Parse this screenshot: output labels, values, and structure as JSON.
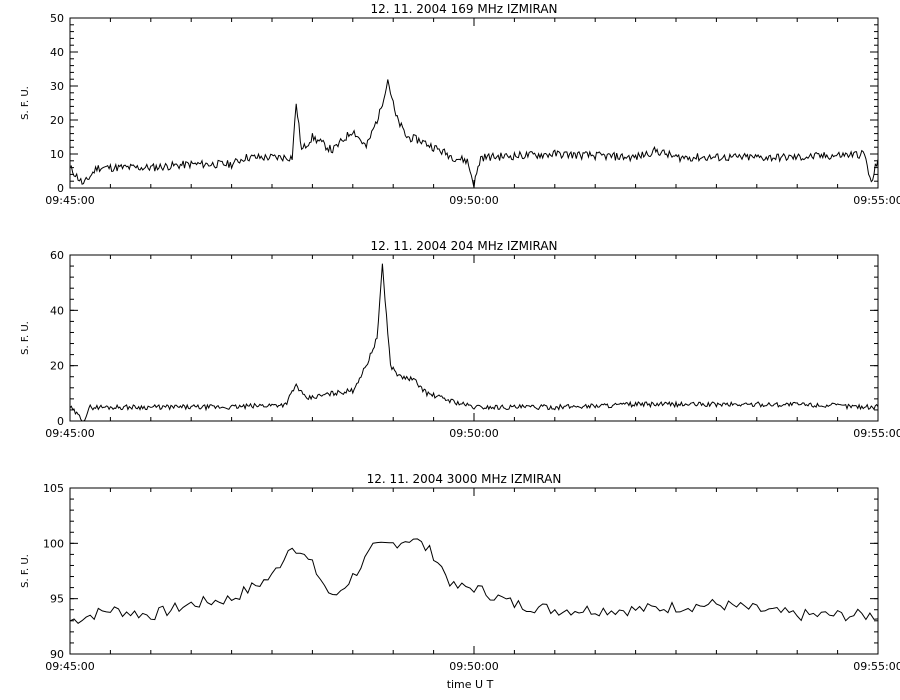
{
  "figure": {
    "xlabel": "time  U T"
  },
  "chart_data": [
    {
      "type": "line",
      "title": "12.  11.  2004    169 MHz    IZMIRAN",
      "ylabel": "S. F. U.",
      "xlim": [
        "09:45:00",
        "09:55:00"
      ],
      "ylim": [
        0,
        50
      ],
      "yticks": [
        0,
        10,
        20,
        30,
        40,
        50
      ],
      "xticks": [
        "09:45:00",
        "09:50:00",
        "09:55:00"
      ],
      "grid": false,
      "anchors": [
        [
          "09:45:00",
          6
        ],
        [
          "09:45:10",
          1
        ],
        [
          "09:45:20",
          6
        ],
        [
          "09:46:00",
          6
        ],
        [
          "09:46:30",
          7
        ],
        [
          "09:47:00",
          7
        ],
        [
          "09:47:10",
          9
        ],
        [
          "09:47:30",
          9
        ],
        [
          "09:47:45",
          9
        ],
        [
          "09:47:48",
          25
        ],
        [
          "09:47:52",
          11
        ],
        [
          "09:48:00",
          15
        ],
        [
          "09:48:15",
          11
        ],
        [
          "09:48:30",
          17
        ],
        [
          "09:48:40",
          12
        ],
        [
          "09:48:50",
          22
        ],
        [
          "09:48:56",
          32
        ],
        [
          "09:49:02",
          21
        ],
        [
          "09:49:10",
          15
        ],
        [
          "09:49:20",
          14
        ],
        [
          "09:49:30",
          12
        ],
        [
          "09:49:45",
          9
        ],
        [
          "09:49:55",
          8
        ],
        [
          "09:50:00",
          1
        ],
        [
          "09:50:05",
          9
        ],
        [
          "09:51:00",
          10
        ],
        [
          "09:52:00",
          9
        ],
        [
          "09:52:15",
          11
        ],
        [
          "09:52:30",
          9
        ],
        [
          "09:53:00",
          9
        ],
        [
          "09:54:00",
          9
        ],
        [
          "09:54:50",
          10
        ],
        [
          "09:54:55",
          1
        ],
        [
          "09:55:00",
          9
        ]
      ],
      "noise": 1.2,
      "seed": 11
    },
    {
      "type": "line",
      "title": "12.  11.  2004    204 MHz    IZMIRAN",
      "ylabel": "S. F. U.",
      "xlim": [
        "09:45:00",
        "09:55:00"
      ],
      "ylim": [
        0,
        60
      ],
      "yticks": [
        0,
        20,
        40,
        60
      ],
      "xticks": [
        "09:45:00",
        "09:50:00",
        "09:55:00"
      ],
      "grid": false,
      "anchors": [
        [
          "09:45:00",
          5
        ],
        [
          "09:45:10",
          0
        ],
        [
          "09:45:15",
          5
        ],
        [
          "09:46:00",
          5
        ],
        [
          "09:47:00",
          5
        ],
        [
          "09:47:40",
          6
        ],
        [
          "09:47:48",
          13
        ],
        [
          "09:47:55",
          8
        ],
        [
          "09:48:15",
          10
        ],
        [
          "09:48:30",
          11
        ],
        [
          "09:48:40",
          20
        ],
        [
          "09:48:48",
          30
        ],
        [
          "09:48:52",
          56
        ],
        [
          "09:48:58",
          20
        ],
        [
          "09:49:05",
          16
        ],
        [
          "09:49:15",
          15
        ],
        [
          "09:49:25",
          10
        ],
        [
          "09:49:45",
          7
        ],
        [
          "09:50:00",
          5
        ],
        [
          "09:51:00",
          5
        ],
        [
          "09:52:00",
          6
        ],
        [
          "09:53:00",
          6
        ],
        [
          "09:54:00",
          6
        ],
        [
          "09:55:00",
          5
        ]
      ],
      "noise": 0.9,
      "seed": 29
    },
    {
      "type": "line",
      "title": "12.  11.  2004    3000 MHz    IZMIRAN",
      "ylabel": "S. F. U.",
      "xlim": [
        "09:45:00",
        "09:55:00"
      ],
      "ylim": [
        90,
        105
      ],
      "yticks": [
        90,
        95,
        100,
        105
      ],
      "xticks": [
        "09:45:00",
        "09:50:00",
        "09:55:00"
      ],
      "grid": false,
      "anchors": [
        [
          "09:45:00",
          93
        ],
        [
          "09:45:30",
          94
        ],
        [
          "09:46:00",
          93.5
        ],
        [
          "09:46:30",
          94.5
        ],
        [
          "09:47:00",
          95
        ],
        [
          "09:47:30",
          97
        ],
        [
          "09:47:45",
          100
        ],
        [
          "09:48:00",
          98
        ],
        [
          "09:48:15",
          95
        ],
        [
          "09:48:30",
          97
        ],
        [
          "09:48:45",
          99.5
        ],
        [
          "09:49:00",
          100
        ],
        [
          "09:49:15",
          100.5
        ],
        [
          "09:49:30",
          99
        ],
        [
          "09:49:45",
          96
        ],
        [
          "09:50:00",
          96
        ],
        [
          "09:50:30",
          94.5
        ],
        [
          "09:51:00",
          94
        ],
        [
          "09:52:00",
          94
        ],
        [
          "09:53:00",
          94.5
        ],
        [
          "09:54:00",
          93.5
        ],
        [
          "09:55:00",
          93.5
        ]
      ],
      "noise": 0.55,
      "seed": 7
    }
  ]
}
